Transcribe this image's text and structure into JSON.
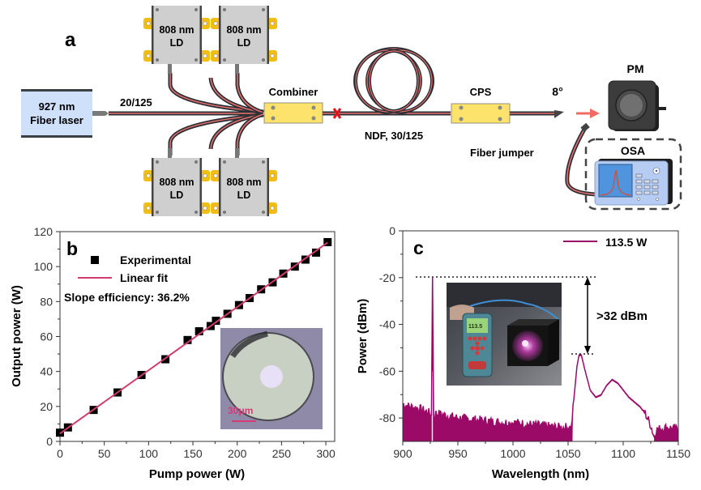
{
  "panel_a": {
    "label": "a",
    "fiber_laser": {
      "line1": "927 nm",
      "line2": "Fiber laser"
    },
    "ld": [
      {
        "line1": "808 nm",
        "line2": "LD"
      },
      {
        "line1": "808 nm",
        "line2": "LD"
      },
      {
        "line1": "808 nm",
        "line2": "LD"
      },
      {
        "line1": "808 nm",
        "line2": "LD"
      }
    ],
    "fiber_label": "20/125",
    "combiner_label": "Combiner",
    "ndf_label": "NDF, 30/125",
    "cps_label": "CPS",
    "angle_label": "8°",
    "pm_label": "PM",
    "osa_label": "OSA",
    "jumper_label": "Fiber jumper",
    "colors": {
      "fiber_core": "#e8706c",
      "fiber_jacket": "#2b2f36",
      "laser_box": "#cfe0fa",
      "ld_box": "#cfcfcf",
      "ld_tab": "#f2be16",
      "module": "#fde36c",
      "splice_mark": "#e0141b"
    }
  },
  "chart_data": [
    {
      "panel": "b",
      "type": "scatter",
      "title": "",
      "xlabel": "Pump power (W)",
      "ylabel": "Output power (W)",
      "xlim": [
        0,
        310
      ],
      "ylim": [
        0,
        120
      ],
      "xticks": [
        0,
        50,
        100,
        150,
        200,
        250,
        300
      ],
      "yticks": [
        0,
        20,
        40,
        60,
        80,
        100,
        120
      ],
      "legend_position": "top-left",
      "annotation": "Slope efficiency: 36.2%",
      "inset_caption": "30μm",
      "series": [
        {
          "name": "Experimental",
          "kind": "markers",
          "color": "#000000",
          "x": [
            0,
            9,
            38,
            65,
            92,
            119,
            144,
            157,
            170,
            176,
            189,
            202,
            214,
            227,
            240,
            252,
            265,
            277,
            289,
            302
          ],
          "y": [
            5,
            8,
            18,
            28,
            38,
            47,
            58,
            63,
            66,
            69,
            73,
            78,
            82,
            87,
            91,
            96,
            100,
            104,
            108,
            114
          ]
        },
        {
          "name": "Linear fit",
          "kind": "line",
          "color": "#d03c6b",
          "x": [
            0,
            302
          ],
          "y": [
            4.5,
            113.8
          ]
        }
      ]
    },
    {
      "panel": "c",
      "type": "area",
      "title": "",
      "xlabel": "Wavelength (nm)",
      "ylabel": "Power (dBm)",
      "xlim": [
        900,
        1150
      ],
      "ylim": [
        -90,
        0
      ],
      "xticks": [
        900,
        950,
        1000,
        1050,
        1100,
        1150
      ],
      "yticks": [
        0,
        -20,
        -40,
        -60,
        -80
      ],
      "legend_position": "top-right",
      "annotation": ">32 dBm",
      "series": [
        {
          "name": "113.5 W",
          "color": "#9c0a68",
          "x": [
            900,
            905,
            910,
            915,
            920,
            925,
            926,
            927,
            928,
            929,
            930,
            940,
            950,
            960,
            970,
            980,
            990,
            1000,
            1010,
            1020,
            1030,
            1040,
            1050,
            1053,
            1056,
            1058,
            1060,
            1062,
            1065,
            1070,
            1075,
            1080,
            1085,
            1090,
            1095,
            1100,
            1105,
            1110,
            1115,
            1120,
            1125,
            1128,
            1130,
            1140,
            1150
          ],
          "y": [
            -74,
            -75,
            -75.5,
            -76,
            -77,
            -78,
            -79,
            -20,
            -79,
            -79,
            -78,
            -79,
            -80,
            -80.5,
            -81,
            -81.5,
            -82,
            -82,
            -82.5,
            -83,
            -83.5,
            -84,
            -84,
            -84,
            -68,
            -58,
            -53,
            -53,
            -59,
            -68,
            -71,
            -70,
            -66,
            -63.5,
            -65,
            -68,
            -71,
            -73,
            -75,
            -78,
            -83,
            -88,
            -85,
            -84,
            -85
          ]
        }
      ]
    }
  ]
}
